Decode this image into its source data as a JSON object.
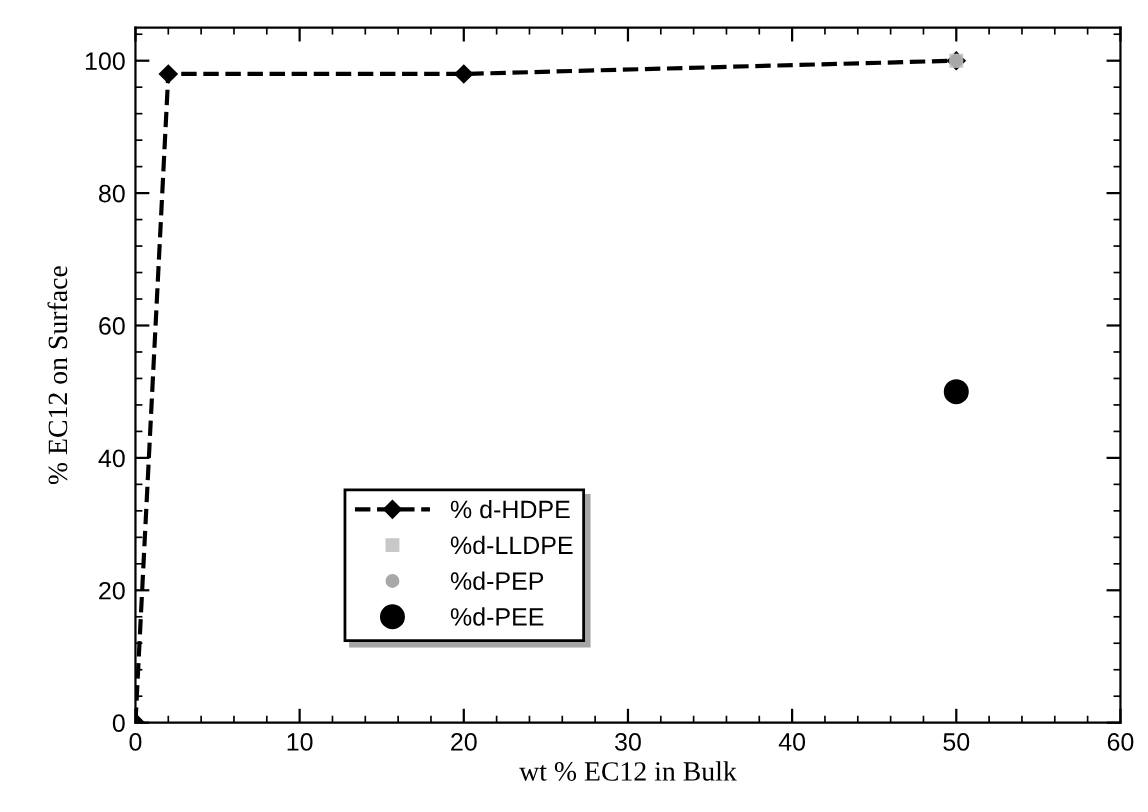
{
  "chart_data": {
    "type": "line",
    "xlabel": "wt % EC12 in Bulk",
    "ylabel": "% EC12 on Surface",
    "xlim": [
      0,
      60
    ],
    "xticks": [
      0,
      10,
      20,
      30,
      40,
      50,
      60
    ],
    "ylim": [
      0,
      105
    ],
    "yticks": [
      0,
      20,
      40,
      60,
      80,
      100
    ],
    "grid": false,
    "legend": "bottom left",
    "series": [
      {
        "name": "% d-HDPE",
        "color": "#000000",
        "x": [
          0,
          2,
          20,
          50
        ],
        "values": [
          0,
          98,
          98,
          100
        ],
        "marker": "diamond",
        "line_style": "dashed"
      },
      {
        "name": "%d-LLDPE",
        "type": "scatter",
        "color": "#c8c8c8",
        "x": [
          50
        ],
        "values": [
          100
        ],
        "marker": "square"
      },
      {
        "name": "%d-PEP",
        "type": "scatter",
        "color": "#a8a8a8",
        "x": [
          50
        ],
        "values": [
          100
        ],
        "marker": "circle"
      },
      {
        "name": "%d-PEE",
        "type": "scatter",
        "color": "#000000",
        "x": [
          50
        ],
        "values": [
          50
        ],
        "marker": "circle"
      }
    ]
  }
}
